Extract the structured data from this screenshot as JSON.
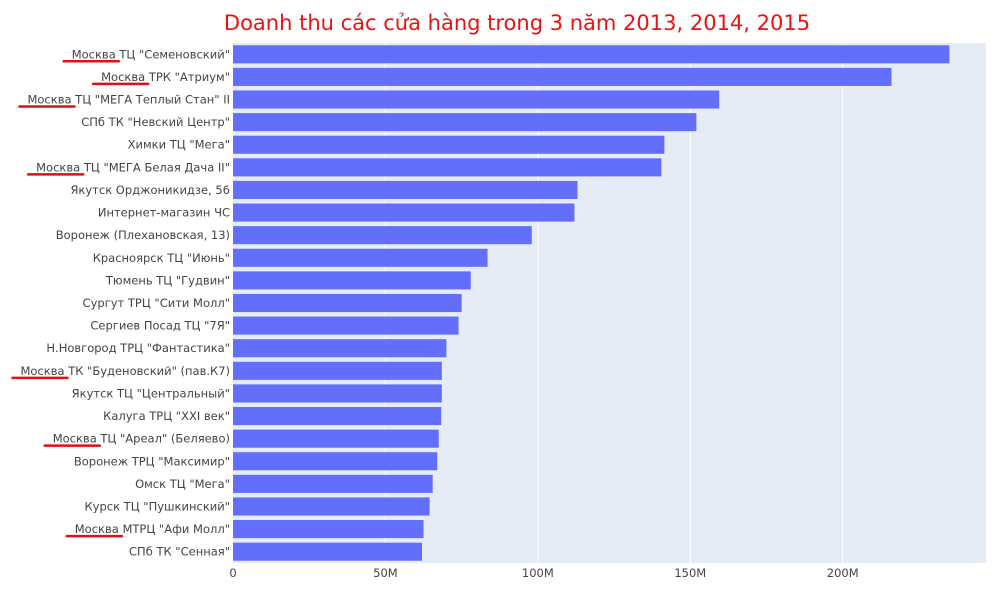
{
  "colors": {
    "bar": "#636efa",
    "plot_bg": "#e5ecf6",
    "grid": "#ffffff",
    "title": "#ee1111",
    "underline": "#dd1111",
    "text": "#444444"
  },
  "chart_data": {
    "type": "bar",
    "orientation": "horizontal",
    "title": "Doanh thu các cửa hàng trong 3 năm 2013, 2014, 2015",
    "xlabel": "",
    "ylabel": "",
    "xlim": [
      0,
      247000000
    ],
    "grid": true,
    "legend": "none",
    "x_ticks": [
      {
        "value": 0,
        "label": "0"
      },
      {
        "value": 50000000,
        "label": "50M"
      },
      {
        "value": 100000000,
        "label": "100M"
      },
      {
        "value": 150000000,
        "label": "150M"
      },
      {
        "value": 200000000,
        "label": "200M"
      }
    ],
    "categories": [
      "Москва ТЦ \"Семеновский\"",
      "Москва ТРК \"Атриум\"",
      "Москва ТЦ \"МЕГА Теплый Стан\" II",
      "СПб ТК \"Невский Центр\"",
      "Химки ТЦ \"Мега\"",
      "Москва ТЦ \"МЕГА Белая Дача II\"",
      "Якутск Орджоникидзе, 56",
      "Интернет-магазин ЧС",
      "Воронеж (Плехановская, 13)",
      "Красноярск ТЦ \"Июнь\"",
      "Тюмень ТЦ \"Гудвин\"",
      "Сургут ТРЦ \"Сити Молл\"",
      "Сергиев Посад ТЦ \"7Я\"",
      "Н.Новгород ТРЦ \"Фантастика\"",
      "Москва ТК \"Буденовский\" (пав.К7)",
      "Якутск ТЦ \"Центральный\"",
      "Калуга ТРЦ \"XXI век\"",
      "Москва ТЦ \"Ареал\" (Беляево)",
      "Воронеж ТРЦ \"Максимир\"",
      "Омск ТЦ \"Мега\"",
      "Курск ТЦ \"Пушкинский\"",
      "Москва МТРЦ \"Афи Молл\"",
      "СПб ТК \"Сенная\""
    ],
    "values": [
      235000000,
      216000000,
      159500000,
      152000000,
      141500000,
      140500000,
      113000000,
      112000000,
      98000000,
      83500000,
      78000000,
      75000000,
      74000000,
      70000000,
      68500000,
      68500000,
      68300000,
      67500000,
      67000000,
      65500000,
      64500000,
      62500000,
      62000000
    ],
    "underlined_word": "Москва"
  }
}
